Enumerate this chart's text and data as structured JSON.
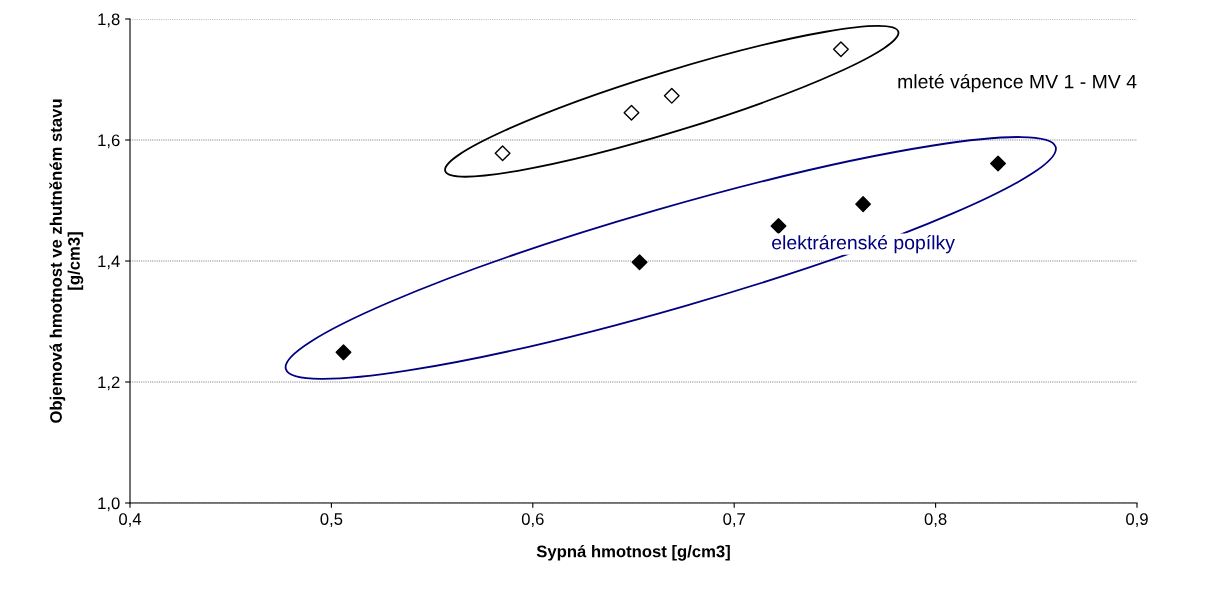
{
  "chart_data": {
    "type": "scatter",
    "xlabel": "Sypná hmotnost [g/cm3]",
    "ylabel": "Objemová hmotnost ve zhutněném stavu\n[g/cm3]",
    "series": [
      {
        "name": "mleté vápence MV 1 - MV 4",
        "color": "#ffffff",
        "x": [
          0.585,
          0.649,
          0.669,
          0.753
        ],
        "values": [
          1.578,
          1.645,
          1.673,
          1.75
        ]
      },
      {
        "name": "elektrárenské popílky",
        "color": "#000000",
        "x": [
          0.506,
          0.653,
          0.722,
          0.764,
          0.831
        ],
        "values": [
          1.249,
          1.398,
          1.458,
          1.494,
          1.561
        ]
      }
    ],
    "xlim": [
      0.4,
      0.9
    ],
    "ylim": [
      1.0,
      1.8
    ],
    "xticks": [
      {
        "value": 0.4,
        "label": "0,4"
      },
      {
        "value": 0.5,
        "label": "0,5"
      },
      {
        "value": 0.6,
        "label": "0,6"
      },
      {
        "value": 0.7,
        "label": "0,7"
      },
      {
        "value": 0.8,
        "label": "0,8"
      },
      {
        "value": 0.9,
        "label": "0,9"
      }
    ],
    "yticks": [
      {
        "value": 1.0,
        "label": "1,0"
      },
      {
        "value": 1.2,
        "label": "1,2"
      },
      {
        "value": 1.4,
        "label": "1,4"
      },
      {
        "value": 1.6,
        "label": "1,6"
      },
      {
        "value": 1.8,
        "label": "1,8"
      }
    ],
    "grid": "y",
    "marker": "diamond",
    "legend": false
  }
}
